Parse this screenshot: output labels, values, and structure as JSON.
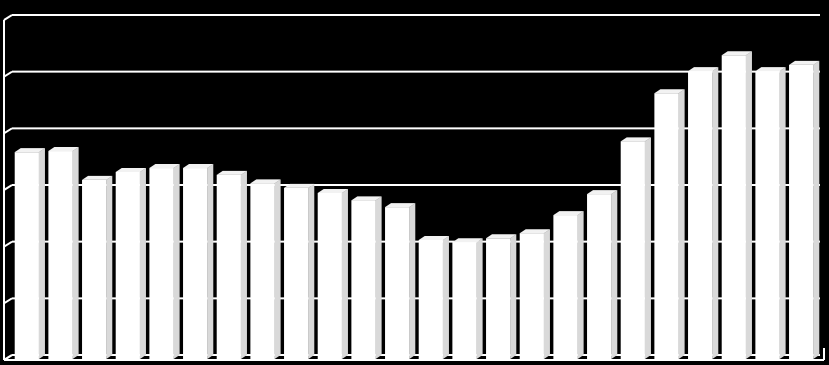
{
  "chart_data": {
    "type": "bar",
    "categories": [
      null,
      null,
      null,
      null,
      null,
      null,
      null,
      null,
      null,
      null,
      null,
      null,
      null,
      null,
      null,
      null,
      null,
      null,
      null,
      null,
      null,
      null,
      null,
      null
    ],
    "values": [
      3.65,
      3.67,
      3.16,
      3.3,
      3.37,
      3.37,
      3.25,
      3.1,
      3.02,
      2.93,
      2.8,
      2.68,
      2.1,
      2.06,
      2.13,
      2.22,
      2.54,
      2.91,
      3.84,
      4.69,
      5.08,
      5.36,
      5.08,
      5.19
    ],
    "color": "#ffffff",
    "ylim": [
      0,
      6
    ],
    "yticks": [
      0,
      1,
      2,
      3,
      4,
      5,
      6
    ],
    "grid": true
  }
}
